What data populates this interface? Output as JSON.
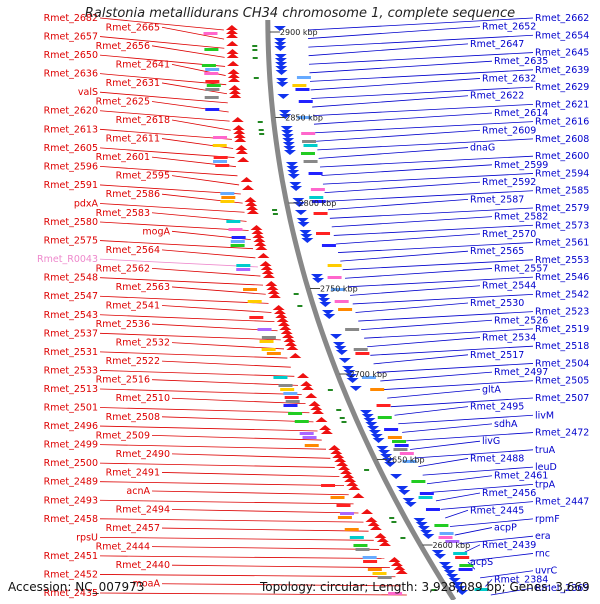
{
  "title": "Ralstonia metallidurans CH34 chromosome 1, complete sequence",
  "footer": {
    "accession": "Accession: NC_007973",
    "topology": "Topology: circular; Length: 3,928,089 bp; Genes: 3,669"
  },
  "colors": {
    "left_genes": "#dd0000",
    "right_genes": "#0000cc",
    "rna_gene": "#ee88cc",
    "backbone": "#888888",
    "tick_green": "#228822",
    "tick_label": "#222222"
  },
  "scale_ticks": [
    {
      "label": "2900 kbp"
    },
    {
      "label": "2850 kbp"
    },
    {
      "label": "2800 kbp"
    },
    {
      "label": "2750 kbp"
    },
    {
      "label": "2700 kbp"
    },
    {
      "label": "2650 kbp"
    },
    {
      "label": "2600 kbp"
    }
  ],
  "left_labels": [
    "Rmet_2682",
    "Rmet_2665",
    "Rmet_2657",
    "Rmet_2656",
    "Rmet_2650",
    "Rmet_2641",
    "Rmet_2636",
    "Rmet_2631",
    "valS",
    "Rmet_2625",
    "Rmet_2620",
    "Rmet_2618",
    "Rmet_2613",
    "Rmet_2611",
    "Rmet_2605",
    "Rmet_2601",
    "Rmet_2596",
    "Rmet_2595",
    "Rmet_2591",
    "Rmet_2586",
    "pdxA",
    "Rmet_2583",
    "Rmet_2580",
    "mogA",
    "Rmet_2575",
    "Rmet_2564",
    "Rmet_R0043",
    "Rmet_2562",
    "Rmet_2548",
    "Rmet_2563",
    "Rmet_2547",
    "Rmet_2541",
    "Rmet_2543",
    "Rmet_2536",
    "Rmet_2537",
    "Rmet_2532",
    "Rmet_2531",
    "Rmet_2522",
    "Rmet_2533",
    "Rmet_2516",
    "Rmet_2513",
    "Rmet_2510",
    "Rmet_2501",
    "Rmet_2508",
    "Rmet_2496",
    "Rmet_2509",
    "Rmet_2499",
    "Rmet_2490",
    "Rmet_2500",
    "Rmet_2491",
    "Rmet_2489",
    "acnA",
    "Rmet_2493",
    "Rmet_2494",
    "Rmet_2458",
    "Rmet_2457",
    "rpsU",
    "Rmet_2444",
    "Rmet_2451",
    "Rmet_2440",
    "Rmet_2452",
    "moaA",
    "Rmet_2435"
  ],
  "right_labels": [
    "Rmet_2662",
    "Rmet_2652",
    "Rmet_2654",
    "Rmet_2647",
    "Rmet_2645",
    "Rmet_2635",
    "Rmet_2639",
    "Rmet_2632",
    "Rmet_2629",
    "Rmet_2622",
    "Rmet_2621",
    "Rmet_2614",
    "Rmet_2616",
    "Rmet_2609",
    "Rmet_2608",
    "dnaG",
    "Rmet_2600",
    "Rmet_2599",
    "Rmet_2594",
    "Rmet_2592",
    "Rmet_2585",
    "Rmet_2587",
    "Rmet_2579",
    "Rmet_2582",
    "Rmet_2573",
    "Rmet_2570",
    "Rmet_2561",
    "Rmet_2565",
    "Rmet_2553",
    "Rmet_2557",
    "Rmet_2546",
    "Rmet_2544",
    "Rmet_2542",
    "Rmet_2530",
    "Rmet_2523",
    "Rmet_2526",
    "Rmet_2519",
    "Rmet_2534",
    "Rmet_2518",
    "Rmet_2517",
    "Rmet_2504",
    "Rmet_2497",
    "Rmet_2505",
    "gltA",
    "Rmet_2507",
    "Rmet_2495",
    "livM",
    "sdhA",
    "Rmet_2472",
    "livG",
    "truA",
    "Rmet_2488",
    "leuD",
    "Rmet_2461",
    "trpA",
    "Rmet_2456",
    "Rmet_2447",
    "Rmet_2445",
    "rpmF",
    "acpP",
    "era",
    "Rmet_2439",
    "rnc",
    "acpS",
    "uvrC",
    "Rmet_2384",
    "Rmet_2369"
  ]
}
